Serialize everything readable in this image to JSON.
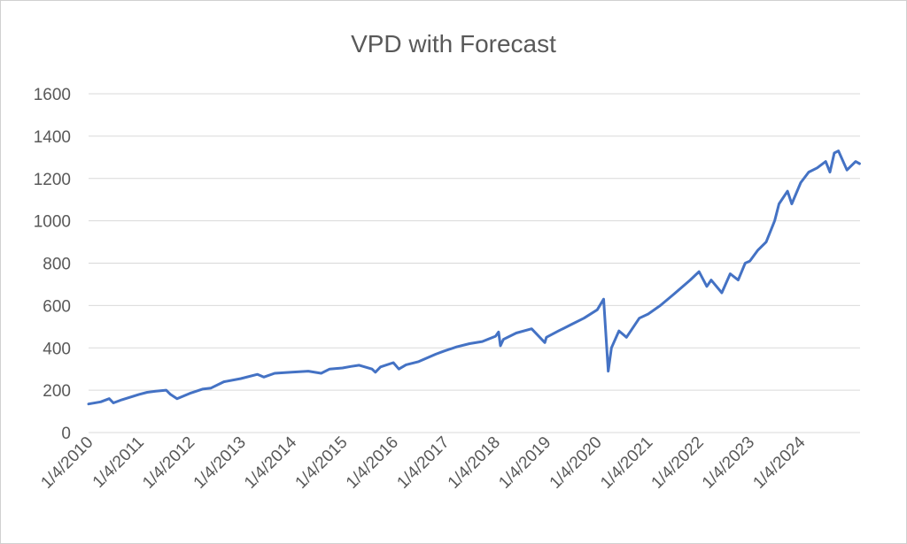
{
  "chart_data": {
    "type": "line",
    "title": "VPD with Forecast",
    "xlabel": "",
    "ylabel": "",
    "ylim": [
      0,
      1600
    ],
    "yticks": [
      0,
      200,
      400,
      600,
      800,
      1000,
      1200,
      1400,
      1600
    ],
    "xticks": [
      "1/4/2010",
      "1/4/2011",
      "1/4/2012",
      "1/4/2013",
      "1/4/2014",
      "1/4/2015",
      "1/4/2016",
      "1/4/2017",
      "1/4/2018",
      "1/4/2019",
      "1/4/2020",
      "1/4/2021",
      "1/4/2022",
      "1/4/2023",
      "1/4/2024"
    ],
    "grid": true,
    "legend": "none",
    "colors": {
      "series": "#4472c4",
      "grid": "#d9d9d9",
      "text": "#595959"
    },
    "series": [
      {
        "x": [
          "2010-01-04",
          "2010-04-01",
          "2010-06-01",
          "2010-07-01",
          "2010-09-01",
          "2011-01-01",
          "2011-03-01",
          "2011-05-01",
          "2011-07-15",
          "2011-08-15",
          "2011-10-01",
          "2012-01-01",
          "2012-04-01",
          "2012-06-01",
          "2012-09-01",
          "2013-01-01",
          "2013-05-01",
          "2013-06-15",
          "2013-09-01",
          "2014-01-01",
          "2014-05-01",
          "2014-08-01",
          "2014-10-01",
          "2015-01-01",
          "2015-03-01",
          "2015-05-01",
          "2015-08-01",
          "2015-08-25",
          "2015-10-01",
          "2016-01-01",
          "2016-02-10",
          "2016-04-01",
          "2016-07-01",
          "2016-11-01",
          "2017-01-01",
          "2017-04-01",
          "2017-07-01",
          "2017-10-01",
          "2018-01-04",
          "2018-01-26",
          "2018-02-08",
          "2018-03-01",
          "2018-06-01",
          "2018-09-20",
          "2018-12-24",
          "2019-01-04",
          "2019-04-01",
          "2019-07-01",
          "2019-10-01",
          "2020-01-04",
          "2020-02-19",
          "2020-03-23",
          "2020-04-15",
          "2020-06-08",
          "2020-08-01",
          "2020-11-01",
          "2021-01-04",
          "2021-04-01",
          "2021-07-01",
          "2021-11-01",
          "2022-01-04",
          "2022-03-01",
          "2022-04-01",
          "2022-06-16",
          "2022-08-16",
          "2022-10-12",
          "2022-12-01",
          "2023-01-04",
          "2023-03-01",
          "2023-05-01",
          "2023-07-01",
          "2023-08-01",
          "2023-10-01",
          "2023-11-01",
          "2024-01-04",
          "2024-03-01",
          "2024-05-01",
          "2024-07-01",
          "2024-08-01",
          "2024-09-01",
          "2024-10-01",
          "2024-12-01",
          "2025-02-01",
          "2025-03-01"
        ],
        "values": [
          135,
          145,
          160,
          140,
          155,
          180,
          190,
          195,
          200,
          180,
          160,
          185,
          205,
          210,
          240,
          255,
          275,
          262,
          280,
          285,
          290,
          280,
          300,
          305,
          312,
          318,
          300,
          285,
          310,
          330,
          300,
          320,
          335,
          370,
          385,
          405,
          420,
          430,
          455,
          475,
          410,
          440,
          470,
          490,
          425,
          450,
          480,
          510,
          540,
          580,
          630,
          290,
          400,
          480,
          450,
          540,
          560,
          600,
          650,
          720,
          760,
          690,
          720,
          660,
          750,
          720,
          800,
          810,
          860,
          900,
          1000,
          1080,
          1140,
          1080,
          1180,
          1230,
          1250,
          1280,
          1230,
          1320,
          1330,
          1240,
          1280,
          1270
        ]
      }
    ]
  }
}
